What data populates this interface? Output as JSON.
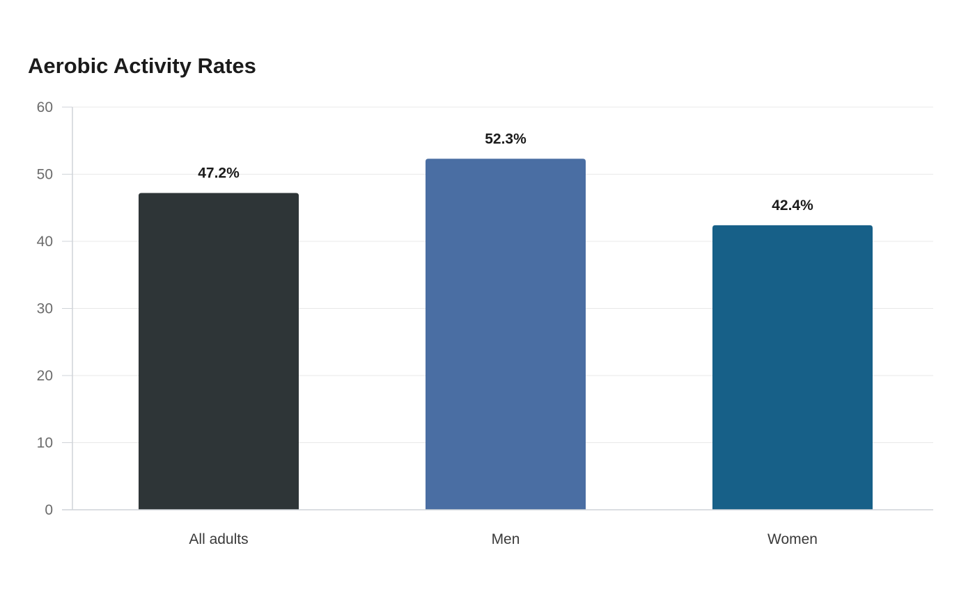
{
  "chart_data": {
    "type": "bar",
    "title": "Aerobic Activity Rates",
    "xlabel": "",
    "ylabel": "",
    "categories": [
      "All adults",
      "Men",
      "Women"
    ],
    "values": [
      47.2,
      52.3,
      42.4
    ],
    "data_labels": [
      "47.2%",
      "52.3%",
      "42.4%"
    ],
    "colors": [
      "#2e3537",
      "#4a6ea3",
      "#176088"
    ],
    "ylim": [
      0,
      60
    ],
    "y_ticks": [
      0,
      10,
      20,
      30,
      40,
      50,
      60
    ],
    "grid": true,
    "legend": "none"
  }
}
